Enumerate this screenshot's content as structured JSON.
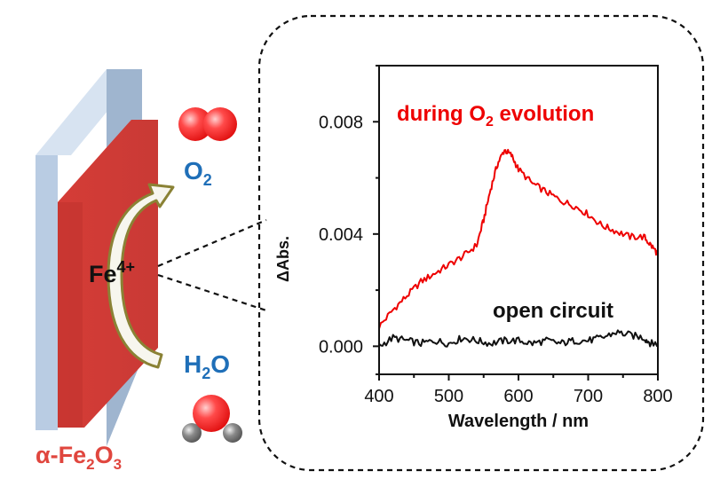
{
  "labels": {
    "o2_main": "O",
    "o2_sub": "2",
    "h2o_h": "H",
    "h2o_sub": "2",
    "h2o_o": "O",
    "fe_base": "Fe",
    "fe_sup": "4+",
    "material_alpha": "α-Fe",
    "material_sub1": "2",
    "material_o": "O",
    "material_sub2": "3"
  },
  "colors": {
    "electrode_red": "#d9443f",
    "substrate_blue": "#b9cce3",
    "label_blue": "#1f6fb8",
    "label_red": "#e0463e",
    "arrow_fill": "#f7f6ee",
    "arrow_stroke": "#8a8235",
    "molecule_red": "#ff3333",
    "molecule_gray": "#777777"
  },
  "chart_data": {
    "type": "line",
    "xlabel": "Wavelength / nm",
    "ylabel": "ΔAbs.",
    "xlim": [
      400,
      800
    ],
    "ylim": [
      -0.001,
      0.01
    ],
    "xticks": [
      400,
      500,
      600,
      700,
      800
    ],
    "yticks": [
      0.0,
      0.004,
      0.008
    ],
    "xtick_labels": [
      "400",
      "500",
      "600",
      "700",
      "800"
    ],
    "ytick_labels": [
      "0.000",
      "0.004",
      "0.008"
    ],
    "grid": false,
    "series": [
      {
        "name": "during O2 evolution",
        "label_main": "during O",
        "label_sub": "2",
        "label_tail": " evolution",
        "color": "#ee0000",
        "x": [
          400,
          420,
          440,
          460,
          480,
          500,
          520,
          540,
          550,
          560,
          570,
          580,
          590,
          600,
          620,
          640,
          660,
          680,
          700,
          720,
          740,
          760,
          780,
          790,
          800
        ],
        "y": [
          0.0007,
          0.0013,
          0.0018,
          0.0023,
          0.0026,
          0.0029,
          0.0032,
          0.0036,
          0.0045,
          0.0056,
          0.0065,
          0.007,
          0.0068,
          0.0063,
          0.0058,
          0.0055,
          0.0052,
          0.005,
          0.0047,
          0.0043,
          0.0041,
          0.0039,
          0.0039,
          0.0036,
          0.0033
        ]
      },
      {
        "name": "open circuit",
        "color": "#111111",
        "x": [
          400,
          420,
          440,
          460,
          480,
          500,
          520,
          540,
          560,
          580,
          600,
          620,
          640,
          660,
          680,
          700,
          720,
          740,
          760,
          780,
          790,
          800
        ],
        "y": [
          0.0,
          0.0003,
          0.0002,
          0.0001,
          0.0002,
          0.0001,
          0.0003,
          0.0002,
          0.0001,
          0.0002,
          0.0002,
          0.0001,
          0.0002,
          0.0001,
          0.0002,
          0.0002,
          0.0003,
          0.0005,
          0.0004,
          0.0003,
          0.0001,
          0.0001
        ]
      }
    ]
  }
}
